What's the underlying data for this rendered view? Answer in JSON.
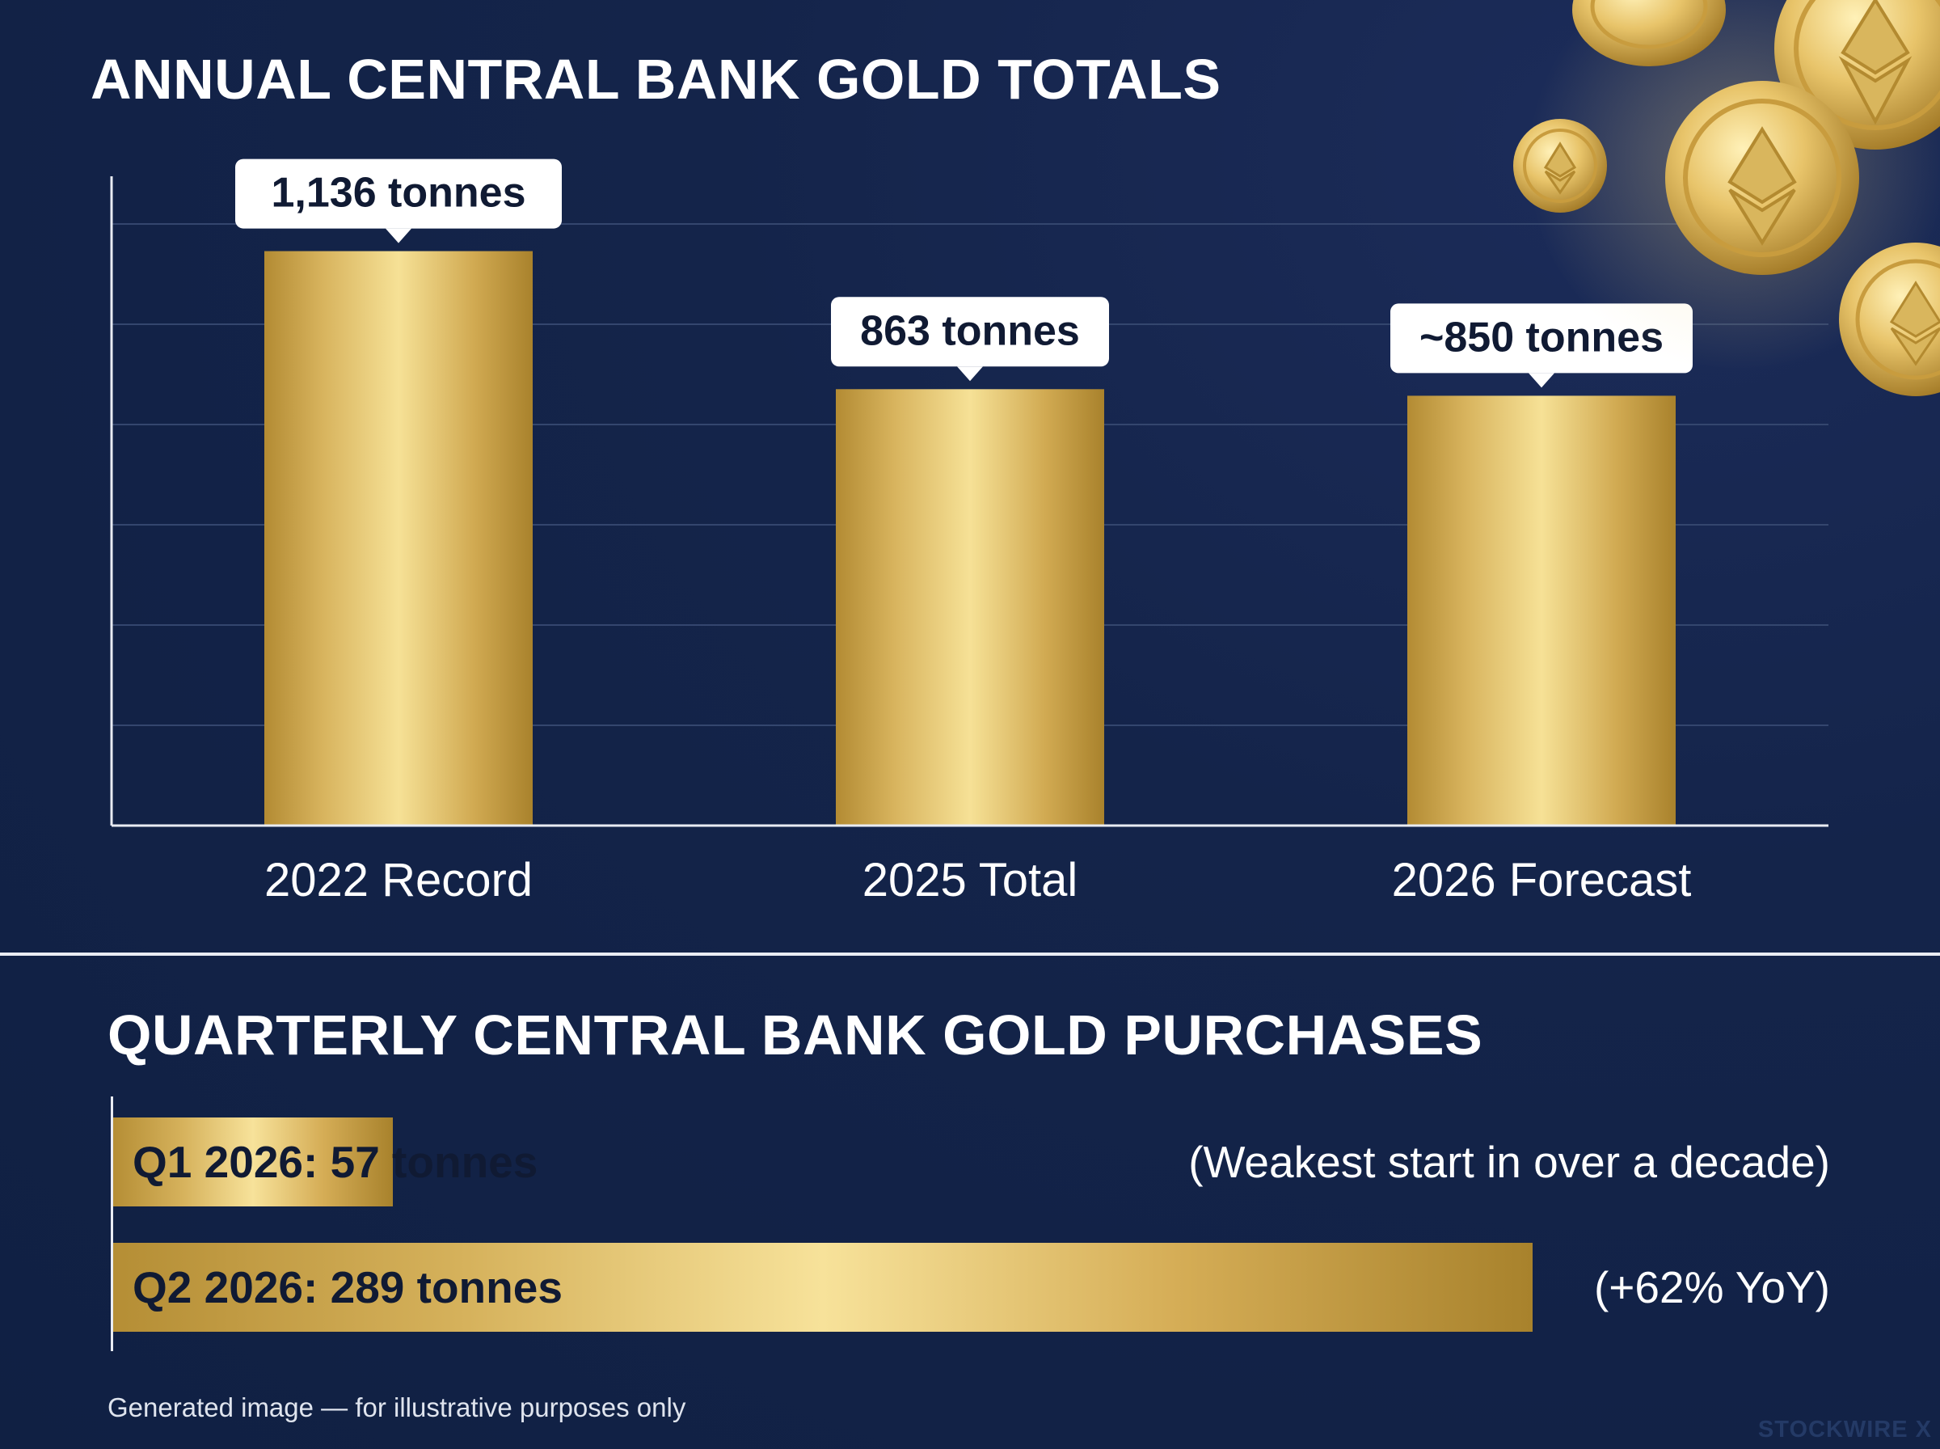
{
  "chart_data": [
    {
      "type": "bar",
      "title": "ANNUAL CENTRAL BANK GOLD TOTALS",
      "categories": [
        "2022 Record",
        "2025 Total",
        "2026 Forecast"
      ],
      "values": [
        1136,
        863,
        850
      ],
      "data_labels": [
        "1,136 tonnes",
        "863 tonnes",
        "~850 tonnes"
      ],
      "ylim": [
        0,
        1300
      ],
      "grid": true,
      "unit": "tonnes"
    },
    {
      "type": "bar",
      "orientation": "horizontal",
      "title": "QUARTERLY CENTRAL BANK GOLD PURCHASES",
      "categories": [
        "Q1 2026",
        "Q2 2026"
      ],
      "values": [
        57,
        289
      ],
      "data_labels": [
        "Q1 2026: 57 tonnes",
        "Q2 2026: 289 tonnes"
      ],
      "annotations": [
        "(Weakest start in over a decade)",
        "(+62% YoY)"
      ],
      "xlim": [
        0,
        295
      ],
      "unit": "tonnes"
    }
  ],
  "footer": "Generated image — for illustrative purposes only",
  "brand": "STOCKWIRE X",
  "colors": {
    "background": "#13234a",
    "gold_dark": "#b08a33",
    "gold_light": "#f7e29a",
    "label_box": "#ffffff",
    "grid": "#34466e"
  },
  "decoration": "gold-coins-icon"
}
